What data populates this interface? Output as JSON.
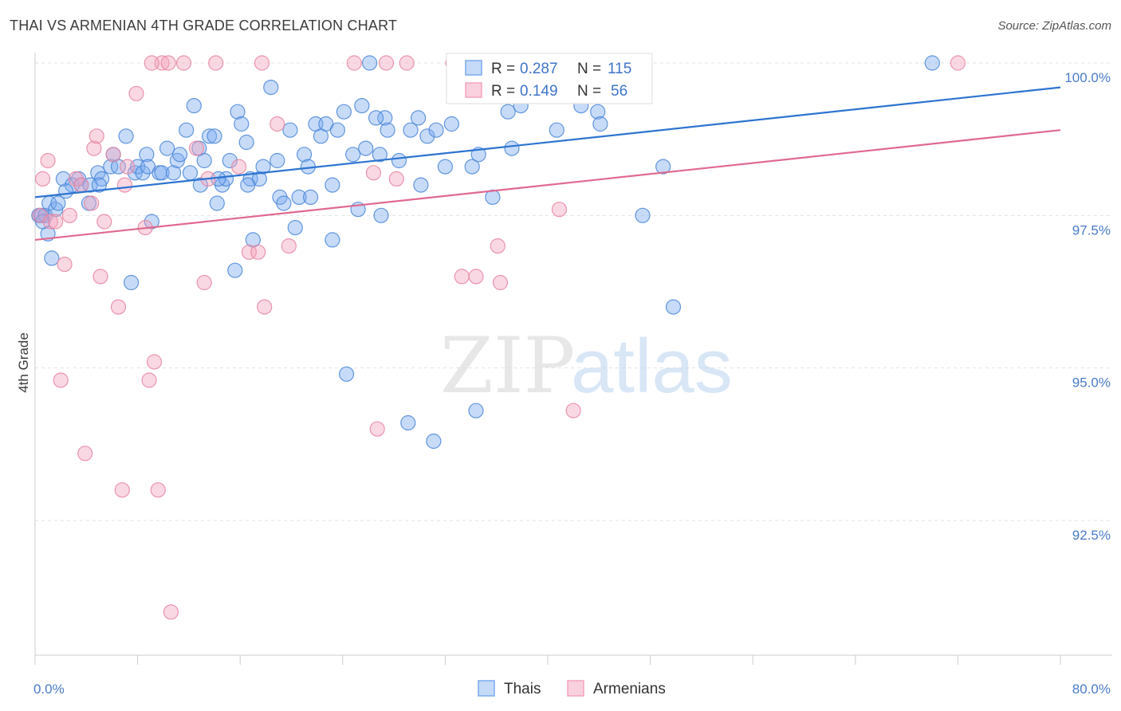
{
  "header": {
    "title": "THAI VS ARMENIAN 4TH GRADE CORRELATION CHART",
    "source": "Source: ZipAtlas.com"
  },
  "watermark": {
    "zip": "ZIP",
    "atlas": "atlas"
  },
  "stats_box": {
    "rows": [
      {
        "r_label": "R =",
        "r_value": "0.287",
        "n_label": "N =",
        "n_value": "115",
        "color": "#7aaaf0"
      },
      {
        "r_label": "R =",
        "r_value": "0.149",
        "n_label": "N =",
        "n_value": "56",
        "color": "#f4a3bc"
      }
    ]
  },
  "chart_data": {
    "type": "scatter",
    "title": "THAI VS ARMENIAN 4TH GRADE CORRELATION CHART",
    "xlabel": "",
    "ylabel": "4th Grade",
    "xlim": [
      0,
      80
    ],
    "ylim": [
      90.5,
      100.4
    ],
    "x_tick_labels": [
      "0.0%",
      "80.0%"
    ],
    "y_ticks": [
      {
        "value": 92.5,
        "label": "92.5%"
      },
      {
        "value": 95.0,
        "label": "95.0%"
      },
      {
        "value": 97.5,
        "label": "97.5%"
      },
      {
        "value": 100.0,
        "label": "100.0%"
      }
    ],
    "grid": "horizontal-dashed",
    "legend_position": "bottom-center",
    "series": [
      {
        "name": "Thais",
        "color": "#7aaaf0",
        "stroke": "#4a86d8",
        "trend": {
          "x0": 0,
          "y0": 97.8,
          "x1": 80,
          "y1": 99.6,
          "color": "#2e74d0"
        },
        "points": [
          [
            0.3,
            97.5
          ],
          [
            0.5,
            97.5
          ],
          [
            0.8,
            97.5
          ],
          [
            1.0,
            97.2
          ],
          [
            1.1,
            97.7
          ],
          [
            1.3,
            96.8
          ],
          [
            1.6,
            97.6
          ],
          [
            1.8,
            97.7
          ],
          [
            2.2,
            98.1
          ],
          [
            2.9,
            98.0
          ],
          [
            3.4,
            98.1
          ],
          [
            3.6,
            98.0
          ],
          [
            4.2,
            97.7
          ],
          [
            4.3,
            98.0
          ],
          [
            4.9,
            98.2
          ],
          [
            5.2,
            98.1
          ],
          [
            5.9,
            98.3
          ],
          [
            6.1,
            98.5
          ],
          [
            6.5,
            98.3
          ],
          [
            7.1,
            98.8
          ],
          [
            7.5,
            96.4
          ],
          [
            7.8,
            98.2
          ],
          [
            8.0,
            98.3
          ],
          [
            8.4,
            98.2
          ],
          [
            8.7,
            98.5
          ],
          [
            9.1,
            97.4
          ],
          [
            9.7,
            98.2
          ],
          [
            9.9,
            98.2
          ],
          [
            10.3,
            98.6
          ],
          [
            10.8,
            98.2
          ],
          [
            11.1,
            98.4
          ],
          [
            11.3,
            98.5
          ],
          [
            11.8,
            98.9
          ],
          [
            12.1,
            98.2
          ],
          [
            12.8,
            98.6
          ],
          [
            12.9,
            98.0
          ],
          [
            13.2,
            98.4
          ],
          [
            13.6,
            98.8
          ],
          [
            14.0,
            98.8
          ],
          [
            14.2,
            97.7
          ],
          [
            14.6,
            98.0
          ],
          [
            14.9,
            98.1
          ],
          [
            15.2,
            98.4
          ],
          [
            15.6,
            96.6
          ],
          [
            15.8,
            99.2
          ],
          [
            16.1,
            99.0
          ],
          [
            16.5,
            98.7
          ],
          [
            16.8,
            98.1
          ],
          [
            17.0,
            97.1
          ],
          [
            17.5,
            98.1
          ],
          [
            17.8,
            98.3
          ],
          [
            18.4,
            99.6
          ],
          [
            18.9,
            98.4
          ],
          [
            19.1,
            97.8
          ],
          [
            19.4,
            97.7
          ],
          [
            19.9,
            98.9
          ],
          [
            20.3,
            97.3
          ],
          [
            20.6,
            97.8
          ],
          [
            21.0,
            98.5
          ],
          [
            21.5,
            97.8
          ],
          [
            21.9,
            99.0
          ],
          [
            22.3,
            98.8
          ],
          [
            22.7,
            99.0
          ],
          [
            23.2,
            97.1
          ],
          [
            23.2,
            98.0
          ],
          [
            23.6,
            98.9
          ],
          [
            24.1,
            99.2
          ],
          [
            24.3,
            94.9
          ],
          [
            24.8,
            98.5
          ],
          [
            25.2,
            97.6
          ],
          [
            25.5,
            99.3
          ],
          [
            25.8,
            98.6
          ],
          [
            26.1,
            100.0
          ],
          [
            26.9,
            98.5
          ],
          [
            27.0,
            97.5
          ],
          [
            27.3,
            99.1
          ],
          [
            27.5,
            98.9
          ],
          [
            28.4,
            98.4
          ],
          [
            29.1,
            94.1
          ],
          [
            29.3,
            98.9
          ],
          [
            29.9,
            99.1
          ],
          [
            30.1,
            98.0
          ],
          [
            30.6,
            98.8
          ],
          [
            31.1,
            93.8
          ],
          [
            31.3,
            98.9
          ],
          [
            32.0,
            98.3
          ],
          [
            32.5,
            99.0
          ],
          [
            33.2,
            99.6
          ],
          [
            34.1,
            98.3
          ],
          [
            34.4,
            94.3
          ],
          [
            34.6,
            98.5
          ],
          [
            35.7,
            97.8
          ],
          [
            36.9,
            99.2
          ],
          [
            37.2,
            98.6
          ],
          [
            37.9,
            99.3
          ],
          [
            38.6,
            100.0
          ],
          [
            40.7,
            98.9
          ],
          [
            42.6,
            99.3
          ],
          [
            43.9,
            99.2
          ],
          [
            44.1,
            99.0
          ],
          [
            45.9,
            100.0
          ],
          [
            47.4,
            97.5
          ],
          [
            49.0,
            98.3
          ],
          [
            49.8,
            96.0
          ],
          [
            70.0,
            100.0
          ],
          [
            0.6,
            97.4
          ],
          [
            2.4,
            97.9
          ],
          [
            5.0,
            98.0
          ],
          [
            12.4,
            99.3
          ],
          [
            33.1,
            99.5
          ],
          [
            16.6,
            98.0
          ],
          [
            26.6,
            99.1
          ],
          [
            8.8,
            98.3
          ],
          [
            14.3,
            98.1
          ],
          [
            21.3,
            98.3
          ]
        ]
      },
      {
        "name": "Armenians",
        "color": "#f4a3bc",
        "stroke": "#e8849f",
        "trend": {
          "x0": 0,
          "y0": 97.1,
          "x1": 80,
          "y1": 98.9,
          "color": "#e0698f"
        },
        "points": [
          [
            0.4,
            97.5
          ],
          [
            0.6,
            98.1
          ],
          [
            1.0,
            98.4
          ],
          [
            1.2,
            97.4
          ],
          [
            1.6,
            97.4
          ],
          [
            2.3,
            96.7
          ],
          [
            2.7,
            97.5
          ],
          [
            3.2,
            98.1
          ],
          [
            3.6,
            98.0
          ],
          [
            3.9,
            93.6
          ],
          [
            4.4,
            97.7
          ],
          [
            4.6,
            98.6
          ],
          [
            4.8,
            98.8
          ],
          [
            5.4,
            97.4
          ],
          [
            6.1,
            98.5
          ],
          [
            6.5,
            96.0
          ],
          [
            6.8,
            93.0
          ],
          [
            7.0,
            98.0
          ],
          [
            7.2,
            98.3
          ],
          [
            7.9,
            99.5
          ],
          [
            8.6,
            97.3
          ],
          [
            8.9,
            94.8
          ],
          [
            9.3,
            95.1
          ],
          [
            9.6,
            93.0
          ],
          [
            9.9,
            100.0
          ],
          [
            10.4,
            100.0
          ],
          [
            10.6,
            91.0
          ],
          [
            11.6,
            100.0
          ],
          [
            12.6,
            98.6
          ],
          [
            13.2,
            96.4
          ],
          [
            13.5,
            98.1
          ],
          [
            14.1,
            100.0
          ],
          [
            16.7,
            96.9
          ],
          [
            17.4,
            96.9
          ],
          [
            17.7,
            100.0
          ],
          [
            17.9,
            96.0
          ],
          [
            18.9,
            99.0
          ],
          [
            19.8,
            97.0
          ],
          [
            24.9,
            100.0
          ],
          [
            26.4,
            98.2
          ],
          [
            26.7,
            94.0
          ],
          [
            27.4,
            100.0
          ],
          [
            28.2,
            98.1
          ],
          [
            29.0,
            100.0
          ],
          [
            32.6,
            100.0
          ],
          [
            33.3,
            96.5
          ],
          [
            34.4,
            96.5
          ],
          [
            36.1,
            97.0
          ],
          [
            36.3,
            96.4
          ],
          [
            40.9,
            97.6
          ],
          [
            42.0,
            94.3
          ],
          [
            72.0,
            100.0
          ],
          [
            2.0,
            94.8
          ],
          [
            5.1,
            96.5
          ],
          [
            9.1,
            100.0
          ],
          [
            15.9,
            98.3
          ]
        ]
      }
    ]
  }
}
